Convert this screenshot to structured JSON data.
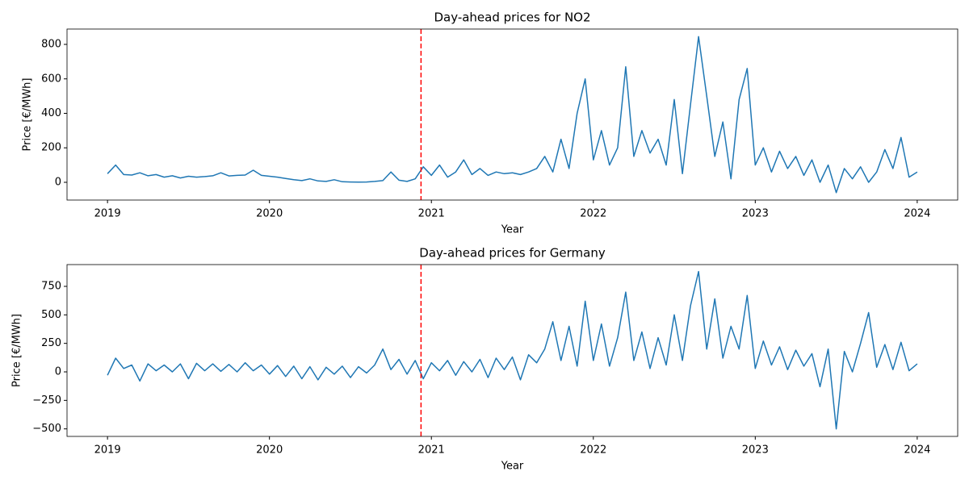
{
  "chart_data": [
    {
      "type": "line",
      "title": "Day-ahead prices for NO2",
      "xlabel": "Year",
      "ylabel": "Price [€/MWh]",
      "xlim": [
        2018.75,
        2024.25
      ],
      "xticks": [
        2019,
        2020,
        2021,
        2022,
        2023,
        2024
      ],
      "ylim": [
        -103,
        889
      ],
      "yticks": [
        0,
        200,
        400,
        600,
        800
      ],
      "vline": {
        "x": 2020.936,
        "color": "#ff0000"
      },
      "x": [
        2019.0,
        2019.05,
        2019.1,
        2019.15,
        2019.2,
        2019.25,
        2019.3,
        2019.35,
        2019.4,
        2019.45,
        2019.5,
        2019.55,
        2019.6,
        2019.65,
        2019.7,
        2019.75,
        2019.8,
        2019.85,
        2019.9,
        2019.95,
        2020.0,
        2020.05,
        2020.1,
        2020.15,
        2020.2,
        2020.25,
        2020.3,
        2020.35,
        2020.4,
        2020.45,
        2020.5,
        2020.55,
        2020.6,
        2020.65,
        2020.7,
        2020.75,
        2020.8,
        2020.85,
        2020.9,
        2020.95,
        2021.0,
        2021.05,
        2021.1,
        2021.15,
        2021.2,
        2021.25,
        2021.3,
        2021.35,
        2021.4,
        2021.45,
        2021.5,
        2021.55,
        2021.6,
        2021.65,
        2021.7,
        2021.75,
        2021.8,
        2021.85,
        2021.9,
        2021.95,
        2022.0,
        2022.05,
        2022.1,
        2022.15,
        2022.2,
        2022.25,
        2022.3,
        2022.35,
        2022.4,
        2022.45,
        2022.5,
        2022.55,
        2022.6,
        2022.65,
        2022.7,
        2022.75,
        2022.8,
        2022.85,
        2022.9,
        2022.95,
        2023.0,
        2023.05,
        2023.1,
        2023.15,
        2023.2,
        2023.25,
        2023.3,
        2023.35,
        2023.4,
        2023.45,
        2023.5,
        2023.55,
        2023.6,
        2023.65,
        2023.7,
        2023.75,
        2023.8,
        2023.85,
        2023.9,
        2023.95,
        2024.0
      ],
      "series": [
        {
          "color": "#1f77b4",
          "values": [
            50,
            100,
            45,
            42,
            55,
            38,
            45,
            30,
            38,
            25,
            35,
            30,
            33,
            38,
            55,
            37,
            40,
            42,
            70,
            40,
            35,
            30,
            22,
            15,
            10,
            20,
            8,
            5,
            15,
            3,
            2,
            1,
            2,
            5,
            10,
            60,
            12,
            5,
            20,
            90,
            40,
            100,
            30,
            60,
            130,
            45,
            80,
            40,
            60,
            50,
            55,
            45,
            60,
            80,
            150,
            60,
            250,
            80,
            400,
            600,
            130,
            300,
            100,
            200,
            670,
            150,
            300,
            170,
            250,
            100,
            480,
            50,
            450,
            845,
            500,
            150,
            350,
            20,
            480,
            660,
            100,
            200,
            60,
            180,
            80,
            150,
            40,
            130,
            0,
            100,
            -60,
            80,
            20,
            90,
            0,
            60,
            190,
            80,
            260,
            30,
            60
          ]
        }
      ]
    },
    {
      "type": "line",
      "title": "Day-ahead prices for Germany",
      "xlabel": "Year",
      "ylabel": "Price [€/MWh]",
      "xlim": [
        2018.75,
        2024.25
      ],
      "xticks": [
        2019,
        2020,
        2021,
        2022,
        2023,
        2024
      ],
      "ylim": [
        -566,
        941
      ],
      "yticks": [
        {
          "value": -500,
          "label": "−500"
        },
        {
          "value": -250,
          "label": "−250"
        },
        0,
        250,
        500,
        750
      ],
      "vline": {
        "x": 2020.936,
        "color": "#ff0000"
      },
      "x": [
        2019.0,
        2019.05,
        2019.1,
        2019.15,
        2019.2,
        2019.25,
        2019.3,
        2019.35,
        2019.4,
        2019.45,
        2019.5,
        2019.55,
        2019.6,
        2019.65,
        2019.7,
        2019.75,
        2019.8,
        2019.85,
        2019.9,
        2019.95,
        2020.0,
        2020.05,
        2020.1,
        2020.15,
        2020.2,
        2020.25,
        2020.3,
        2020.35,
        2020.4,
        2020.45,
        2020.5,
        2020.55,
        2020.6,
        2020.65,
        2020.7,
        2020.75,
        2020.8,
        2020.85,
        2020.9,
        2020.95,
        2021.0,
        2021.05,
        2021.1,
        2021.15,
        2021.2,
        2021.25,
        2021.3,
        2021.35,
        2021.4,
        2021.45,
        2021.5,
        2021.55,
        2021.6,
        2021.65,
        2021.7,
        2021.75,
        2021.8,
        2021.85,
        2021.9,
        2021.95,
        2022.0,
        2022.05,
        2022.1,
        2022.15,
        2022.2,
        2022.25,
        2022.3,
        2022.35,
        2022.4,
        2022.45,
        2022.5,
        2022.55,
        2022.6,
        2022.65,
        2022.7,
        2022.75,
        2022.8,
        2022.85,
        2022.9,
        2022.95,
        2023.0,
        2023.05,
        2023.1,
        2023.15,
        2023.2,
        2023.25,
        2023.3,
        2023.35,
        2023.4,
        2023.45,
        2023.5,
        2023.55,
        2023.6,
        2023.65,
        2023.7,
        2023.75,
        2023.8,
        2023.85,
        2023.9,
        2023.95,
        2024.0
      ],
      "series": [
        {
          "color": "#1f77b4",
          "values": [
            -30,
            120,
            30,
            60,
            -80,
            70,
            10,
            60,
            0,
            70,
            -60,
            75,
            10,
            70,
            5,
            65,
            0,
            80,
            10,
            60,
            -20,
            55,
            -40,
            50,
            -60,
            45,
            -70,
            40,
            -20,
            50,
            -50,
            45,
            -10,
            60,
            200,
            20,
            110,
            -20,
            100,
            -60,
            80,
            10,
            100,
            -30,
            90,
            0,
            110,
            -50,
            120,
            20,
            130,
            -70,
            150,
            80,
            200,
            440,
            100,
            400,
            50,
            620,
            100,
            420,
            50,
            300,
            700,
            100,
            350,
            30,
            300,
            60,
            500,
            100,
            580,
            880,
            200,
            640,
            120,
            400,
            200,
            670,
            30,
            270,
            60,
            220,
            20,
            190,
            50,
            160,
            -130,
            200,
            -500,
            180,
            0,
            250,
            520,
            40,
            240,
            20,
            260,
            10,
            70
          ]
        }
      ]
    }
  ]
}
